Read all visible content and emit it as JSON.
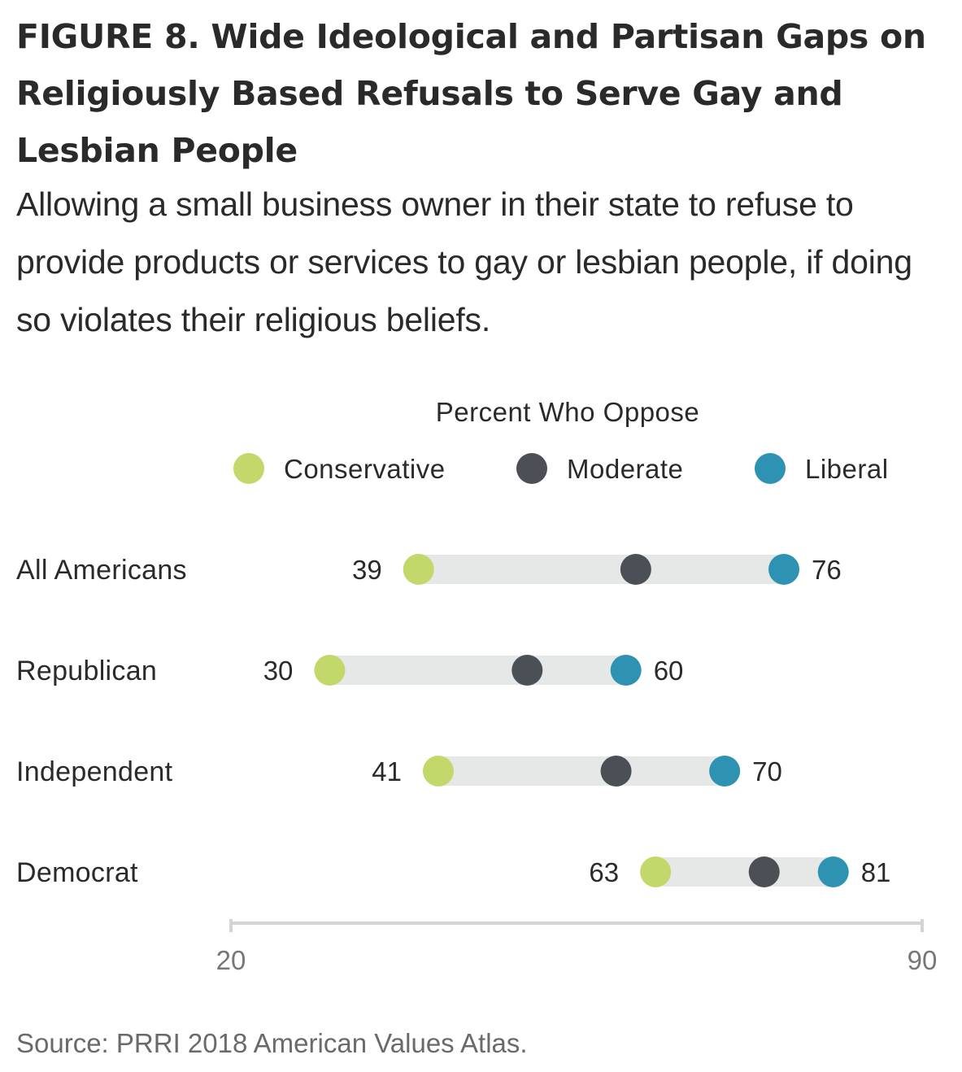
{
  "title": "FIGURE 8.  Wide Ideological and Partisan Gaps on Religiously Based Refusals to Serve Gay and Lesbian People",
  "subtitle": "Allowing a small business owner in their state to refuse to provide products or services to gay or lesbian people, if doing so violates their religious beliefs.",
  "source": "Source: PRRI 2018 American Values Atlas.",
  "colors": {
    "Conservative": "#c2d86a",
    "Moderate": "#4a5055",
    "Liberal": "#2e93b3",
    "track": "#e6e8e8",
    "axis": "#d4d4d4"
  },
  "chart_data": {
    "type": "dumbbell",
    "title": "Percent Who Oppose",
    "xlim": [
      20,
      90
    ],
    "tick_labels": [
      "20",
      "90"
    ],
    "categories": [
      "All Americans",
      "Republican",
      "Independent",
      "Democrat"
    ],
    "series": [
      {
        "name": "Conservative",
        "values": [
          39,
          30,
          41,
          63
        ]
      },
      {
        "name": "Moderate",
        "values": [
          61,
          50,
          59,
          74
        ]
      },
      {
        "name": "Liberal",
        "values": [
          76,
          60,
          70,
          81
        ]
      }
    ],
    "low_labels": [
      "39",
      "30",
      "41",
      "63"
    ],
    "high_labels": [
      "76",
      "60",
      "70",
      "81"
    ],
    "legend_position": "top"
  }
}
